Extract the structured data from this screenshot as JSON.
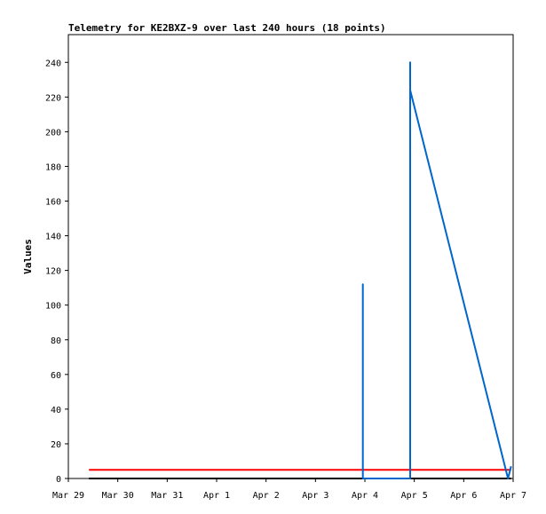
{
  "chart_data": {
    "type": "line",
    "title": "Telemetry for KE2BXZ-9 over last 240 hours (18 points)",
    "xlabel": "",
    "ylabel": "Values",
    "x_ticks": [
      "Mar 29",
      "Mar 30",
      "Mar 31",
      "Apr 1",
      "Apr 2",
      "Apr 3",
      "Apr 4",
      "Apr 5",
      "Apr 6",
      "Apr 7"
    ],
    "xlim": [
      "2023-03-29T00:00",
      "2023-04-07T00:00"
    ],
    "y_ticks": [
      "0",
      "20",
      "40",
      "60",
      "80",
      "100",
      "120",
      "140",
      "160",
      "180",
      "200",
      "220",
      "240"
    ],
    "ylim": [
      0,
      256
    ],
    "grid": false,
    "series": [
      {
        "color": "#ff0000",
        "x": [
          "2023-03-29T10:00",
          "2023-04-06T23:00"
        ],
        "y": [
          5,
          5
        ]
      },
      {
        "color": "#000000",
        "x": [
          "2023-03-29T10:00",
          "2023-04-06T23:00"
        ],
        "y": [
          0,
          0
        ]
      },
      {
        "color": "#0066cc",
        "x": [
          "2023-04-03T23:00",
          "2023-04-03T23:00",
          "2023-04-03T23:00",
          "2023-04-04T22:00",
          "2023-04-04T22:00",
          "2023-04-04T22:00",
          "2023-04-06T21:30",
          "2023-04-06T23:00"
        ],
        "y": [
          0,
          112,
          0,
          0,
          240,
          224,
          0,
          7
        ]
      }
    ]
  }
}
